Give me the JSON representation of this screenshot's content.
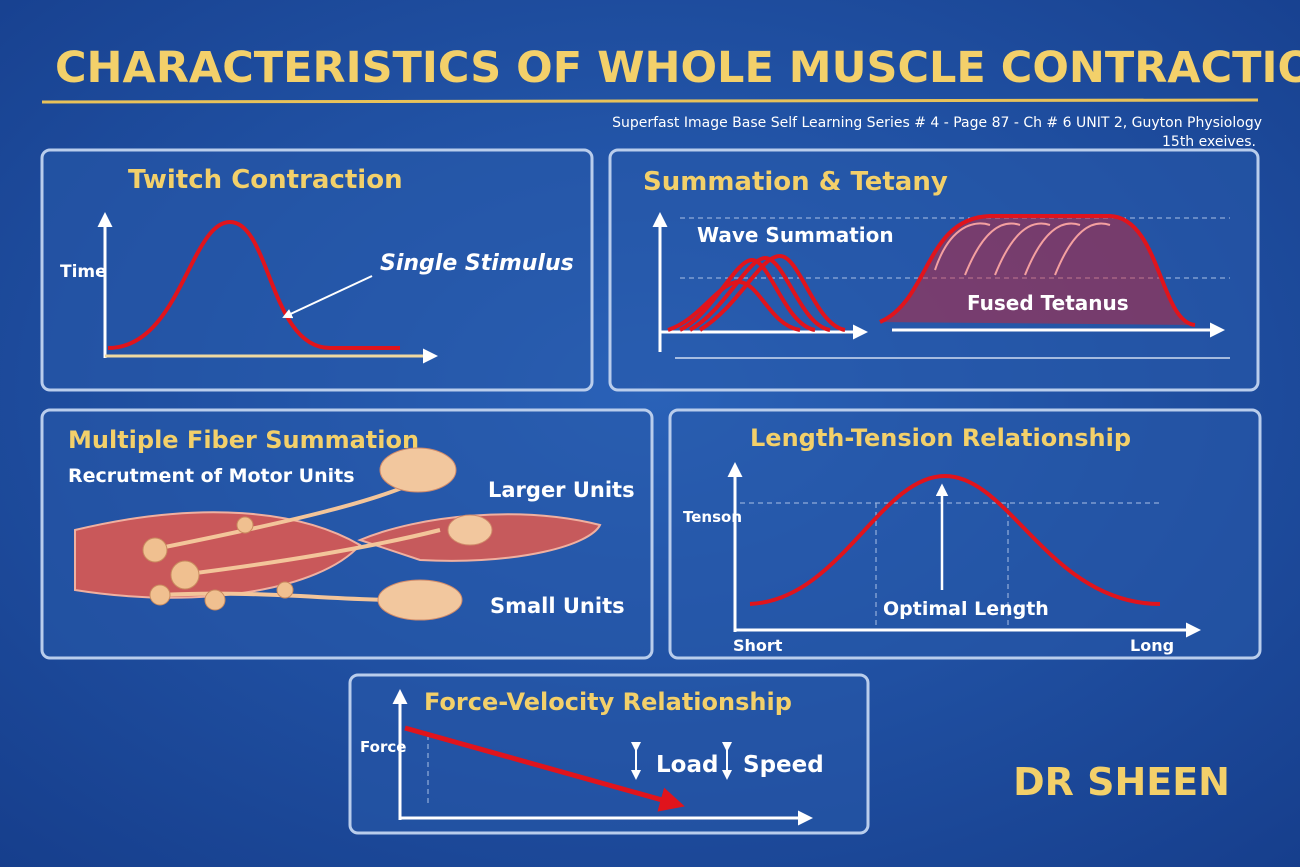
{
  "header": {
    "title": "CHARACTERISTICS OF WHOLE MUSCLE CONTRACTION",
    "source": "Superfast Image Base Self Learning Series # 4 - Page 87 - Ch # 6 UNIT 2, Guyton Physiology",
    "edition": "15th exeives."
  },
  "panels": [
    {
      "title": "Twitch Contraction",
      "labels": [
        "Time",
        "Single Stimulus"
      ]
    },
    {
      "title": "Summation & Tetany",
      "labels": [
        "Wave Summation",
        "Fused Tetanus"
      ]
    },
    {
      "title": "Multiple Fiber Summation",
      "labels": [
        "Recrutment of Motor Units",
        "Larger Units",
        "Small Units"
      ]
    },
    {
      "title": "Length-Tension Relationship",
      "labels": [
        "Tenson",
        "Optimal Length",
        "Short",
        "Long"
      ]
    },
    {
      "title": "Force-Velocity Relationship",
      "labels": [
        "Force",
        "Load",
        "Speed"
      ]
    }
  ],
  "author": "DR SHEEN"
}
